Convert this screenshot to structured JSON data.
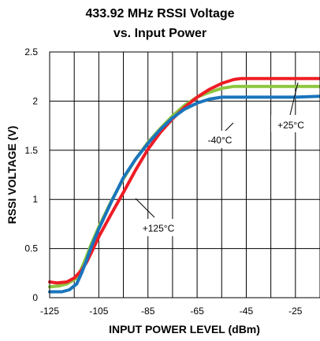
{
  "chart_data": {
    "type": "line",
    "title_lines": [
      "433.92 MHz RSSI Voltage",
      "vs. Input Power"
    ],
    "xlabel": "INPUT POWER LEVEL (dBm)",
    "ylabel": "RSSI VOLTAGE (V)",
    "xlim": [
      -125,
      -15
    ],
    "ylim": [
      0,
      2.5
    ],
    "xticks": [
      -125,
      -105,
      -85,
      -65,
      -45,
      -25
    ],
    "xtick_labels": [
      "-125",
      "-105",
      "-85",
      "-65",
      "-45",
      "-25"
    ],
    "yticks": [
      0,
      0.5,
      1,
      1.5,
      2,
      2.5
    ],
    "ytick_labels": [
      "0",
      "0.5",
      "1",
      "1.5",
      "2",
      "2.5"
    ],
    "grid": true,
    "colors": {
      "plus125": "#ee1c25",
      "plus25": "#8dc63f",
      "minus40": "#1a75bc"
    },
    "series": [
      {
        "color_key": "plus25",
        "x": [
          -125,
          -121,
          -118,
          -114,
          -112,
          -110,
          -108,
          -105,
          -100,
          -95,
          -90,
          -85,
          -80,
          -75,
          -70,
          -65,
          -60,
          -55,
          -50,
          -47,
          -44,
          -40,
          -35,
          -30,
          -25,
          -15
        ],
        "y": [
          0.11,
          0.12,
          0.14,
          0.2,
          0.3,
          0.42,
          0.55,
          0.72,
          0.98,
          1.21,
          1.41,
          1.58,
          1.72,
          1.85,
          1.96,
          2.04,
          2.09,
          2.13,
          2.15,
          2.15,
          2.15,
          2.15,
          2.15,
          2.15,
          2.15,
          2.15
        ]
      },
      {
        "color_key": "plus125",
        "x": [
          -125,
          -122,
          -118,
          -115,
          -112,
          -110,
          -108,
          -105,
          -100,
          -95,
          -90,
          -85,
          -80,
          -75,
          -70,
          -65,
          -60,
          -55,
          -50,
          -47,
          -44,
          -42,
          -40,
          -30,
          -25,
          -15
        ],
        "y": [
          0.16,
          0.15,
          0.16,
          0.2,
          0.28,
          0.36,
          0.46,
          0.62,
          0.85,
          1.07,
          1.3,
          1.51,
          1.68,
          1.82,
          1.94,
          2.04,
          2.12,
          2.18,
          2.22,
          2.23,
          2.23,
          2.23,
          2.23,
          2.23,
          2.23,
          2.23
        ]
      },
      {
        "color_key": "minus40",
        "x": [
          -125,
          -120,
          -117,
          -114,
          -112,
          -110,
          -108,
          -105,
          -100,
          -95,
          -90,
          -85,
          -80,
          -75,
          -70,
          -65,
          -60,
          -55,
          -52,
          -50,
          -46,
          -45,
          -40,
          -30,
          -25,
          -15
        ],
        "y": [
          0.06,
          0.06,
          0.08,
          0.14,
          0.25,
          0.38,
          0.52,
          0.7,
          0.97,
          1.22,
          1.41,
          1.57,
          1.71,
          1.83,
          1.92,
          1.98,
          2.02,
          2.04,
          2.04,
          2.04,
          2.04,
          2.04,
          2.04,
          2.04,
          2.04,
          2.05
        ]
      }
    ],
    "annotations": [
      {
        "text": "+125°C",
        "color_key": "plus125"
      },
      {
        "text": "-40°C",
        "color_key": "minus40"
      },
      {
        "text": "+25°C",
        "color_key": "plus25"
      }
    ]
  }
}
